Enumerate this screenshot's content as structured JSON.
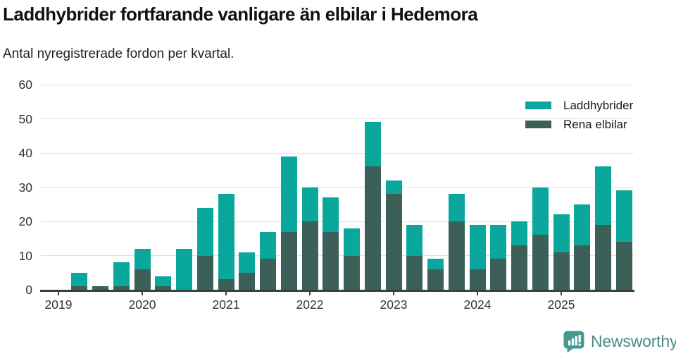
{
  "title": "Laddhybrider fortfarande vanligare än elbilar i Hedemora",
  "subtitle": "Antal nyregistrerade fordon per kvartal.",
  "footer": {
    "brand": "Newsworthy"
  },
  "colors": {
    "laddhybrider_teal": "#0aa79c",
    "rena_elbilar_green": "#3c5f57",
    "gridline": "#e0e0e0",
    "axis": "#3f3f3f",
    "axis_text": "#333333",
    "title_text": "#111111",
    "brand_text": "#4d8a85",
    "brand_icon": "#459a90"
  },
  "chart_data": {
    "type": "bar",
    "stacked": true,
    "title": "Laddhybrider fortfarande vanligare än elbilar i Hedemora",
    "subtitle": "Antal nyregistrerade fordon per kvartal.",
    "xlabel": "",
    "ylabel": "",
    "ylim": [
      0,
      60
    ],
    "yticks": [
      0,
      10,
      20,
      30,
      40,
      50,
      60
    ],
    "x_tick_labels": [
      "2019",
      "2020",
      "2021",
      "2022",
      "2023",
      "2024",
      "2025"
    ],
    "grid": "horizontal",
    "legend_position": "top-right",
    "stack_order": "Rena elbilar on bottom, Laddhybrider on top",
    "categories": [
      "2019 Q1",
      "2019 Q2",
      "2019 Q3",
      "2019 Q4",
      "2020 Q1",
      "2020 Q2",
      "2020 Q3",
      "2020 Q4",
      "2021 Q1",
      "2021 Q2",
      "2021 Q3",
      "2021 Q4",
      "2022 Q1",
      "2022 Q2",
      "2022 Q3",
      "2022 Q4",
      "2023 Q1",
      "2023 Q2",
      "2023 Q3",
      "2023 Q4",
      "2024 Q1",
      "2024 Q2",
      "2024 Q3",
      "2024 Q4",
      "2025 Q1",
      "2025 Q2",
      "2025 Q3",
      "2025 Q4"
    ],
    "series": [
      {
        "name": "Laddhybrider",
        "color": "#0aa79c",
        "values": [
          0,
          4,
          0,
          7,
          6,
          3,
          12,
          14,
          25,
          6,
          8,
          22,
          10,
          10,
          8,
          13,
          4,
          9,
          3,
          8,
          13,
          10,
          7,
          14,
          11,
          12,
          17,
          15
        ]
      },
      {
        "name": "Rena elbilar",
        "color": "#3c5f57",
        "values": [
          0,
          1,
          1,
          1,
          6,
          1,
          0,
          10,
          3,
          5,
          9,
          17,
          20,
          17,
          10,
          36,
          28,
          10,
          6,
          20,
          6,
          9,
          13,
          16,
          11,
          13,
          19,
          14
        ]
      }
    ],
    "totals": [
      0,
      5,
      1,
      8,
      12,
      4,
      12,
      24,
      28,
      11,
      17,
      39,
      30,
      27,
      18,
      49,
      32,
      19,
      9,
      28,
      19,
      19,
      20,
      30,
      22,
      25,
      36,
      29
    ]
  }
}
